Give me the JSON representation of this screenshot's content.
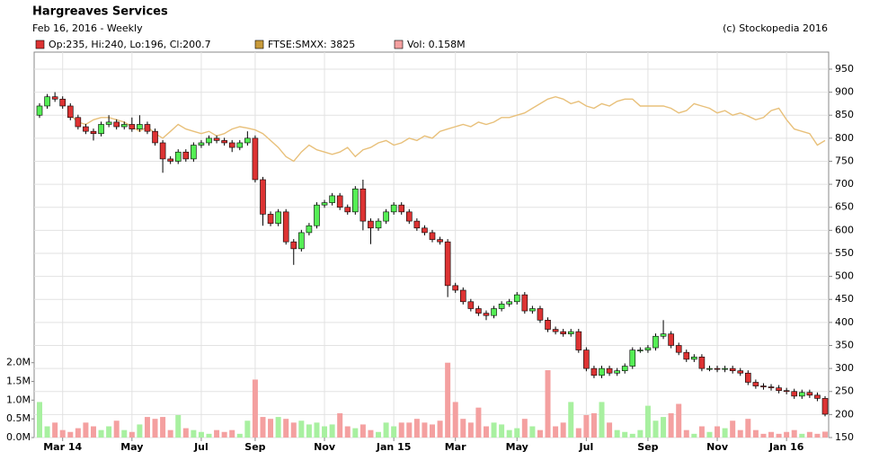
{
  "chart_data": {
    "type": "candlestick",
    "title": "Hargreaves Services",
    "subtitle": "Feb 16, 2016 - Weekly",
    "credit": "(c) Stockopedia 2016",
    "categories": [
      null,
      null,
      null,
      "Mar 14",
      null,
      null,
      null,
      null,
      null,
      null,
      null,
      null,
      "May",
      null,
      null,
      null,
      null,
      null,
      null,
      null,
      null,
      "Jul",
      null,
      null,
      null,
      null,
      null,
      null,
      "Sep",
      null,
      null,
      null,
      null,
      null,
      null,
      null,
      null,
      "Nov",
      null,
      null,
      null,
      null,
      null,
      null,
      null,
      null,
      "Jan 15",
      null,
      null,
      null,
      null,
      null,
      null,
      null,
      "Mar",
      null,
      null,
      null,
      null,
      null,
      null,
      null,
      "May",
      null,
      null,
      null,
      null,
      null,
      null,
      null,
      null,
      "Jul",
      null,
      null,
      null,
      null,
      null,
      null,
      null,
      "Sep",
      null,
      null,
      null,
      null,
      null,
      null,
      null,
      null,
      "Nov",
      null,
      null,
      null,
      null,
      null,
      null,
      null,
      null,
      "Jan 16",
      null,
      null,
      null,
      null,
      null
    ],
    "series": [
      {
        "name": "Op:235, Hi:240, Lo:196, Cl:200.7",
        "color": "#dd3333",
        "up_color": "#55ee55",
        "open": [
          850,
          870,
          890,
          885,
          870,
          845,
          825,
          815,
          810,
          830,
          835,
          825,
          830,
          820,
          830,
          815,
          790,
          755,
          750,
          770,
          755,
          785,
          790,
          800,
          795,
          790,
          780,
          790,
          800,
          710,
          635,
          615,
          640,
          575,
          560,
          595,
          610,
          655,
          660,
          675,
          650,
          640,
          690,
          620,
          605,
          620,
          640,
          655,
          640,
          620,
          605,
          595,
          580,
          575,
          480,
          470,
          445,
          430,
          420,
          415,
          430,
          440,
          445,
          460,
          425,
          430,
          405,
          385,
          380,
          375,
          380,
          340,
          300,
          285,
          300,
          290,
          295,
          305,
          340,
          340,
          345,
          370,
          375,
          350,
          335,
          320,
          325,
          300,
          300,
          298,
          300,
          295,
          290,
          270,
          262,
          260,
          258,
          252,
          250,
          240,
          248,
          242,
          235
        ],
        "high": [
          876,
          896,
          900,
          891,
          876,
          851,
          831,
          821,
          836,
          850,
          841,
          836,
          845,
          850,
          836,
          821,
          796,
          761,
          776,
          776,
          791,
          796,
          806,
          806,
          801,
          796,
          796,
          815,
          806,
          716,
          641,
          646,
          646,
          581,
          601,
          616,
          661,
          666,
          681,
          681,
          656,
          696,
          710,
          626,
          626,
          646,
          661,
          661,
          646,
          626,
          611,
          601,
          586,
          581,
          486,
          476,
          451,
          436,
          426,
          436,
          446,
          451,
          466,
          466,
          436,
          436,
          411,
          391,
          386,
          386,
          386,
          346,
          306,
          306,
          306,
          301,
          311,
          346,
          346,
          351,
          376,
          405,
          381,
          356,
          341,
          331,
          331,
          306,
          306,
          306,
          306,
          301,
          296,
          276,
          268,
          266,
          264,
          258,
          256,
          254,
          254,
          248,
          240
        ],
        "low": [
          844,
          864,
          879,
          864,
          839,
          819,
          809,
          795,
          804,
          824,
          819,
          819,
          814,
          814,
          809,
          784,
          725,
          744,
          744,
          749,
          749,
          779,
          784,
          789,
          784,
          770,
          774,
          784,
          704,
          610,
          609,
          609,
          569,
          525,
          554,
          589,
          604,
          649,
          654,
          644,
          634,
          634,
          600,
          570,
          599,
          614,
          634,
          634,
          614,
          599,
          589,
          574,
          569,
          455,
          464,
          439,
          424,
          414,
          405,
          409,
          424,
          434,
          439,
          419,
          419,
          399,
          379,
          374,
          369,
          369,
          334,
          294,
          279,
          279,
          284,
          284,
          289,
          299,
          334,
          334,
          339,
          364,
          344,
          329,
          314,
          314,
          294,
          294,
          292,
          292,
          289,
          284,
          264,
          256,
          254,
          252,
          246,
          244,
          234,
          234,
          236,
          229,
          196
        ],
        "close": [
          870,
          890,
          885,
          870,
          845,
          825,
          815,
          810,
          830,
          835,
          825,
          830,
          820,
          830,
          815,
          790,
          755,
          750,
          770,
          755,
          785,
          790,
          800,
          795,
          790,
          780,
          790,
          800,
          710,
          635,
          615,
          640,
          575,
          560,
          595,
          610,
          655,
          660,
          675,
          650,
          640,
          690,
          620,
          605,
          620,
          640,
          655,
          640,
          620,
          605,
          595,
          580,
          575,
          480,
          470,
          445,
          430,
          420,
          415,
          430,
          440,
          445,
          460,
          425,
          430,
          405,
          385,
          380,
          375,
          380,
          340,
          300,
          285,
          300,
          290,
          295,
          305,
          340,
          340,
          345,
          370,
          375,
          350,
          335,
          320,
          325,
          300,
          300,
          298,
          300,
          295,
          290,
          270,
          262,
          260,
          258,
          252,
          250,
          240,
          248,
          242,
          235,
          200.7
        ]
      }
    ],
    "overlay": {
      "name": "FTSE:SMXX: 3825",
      "color": "#e8c07a",
      "legend_color": "#c89a3a",
      "values": [
        null,
        null,
        null,
        null,
        850,
        835,
        830,
        840,
        845,
        845,
        840,
        835,
        825,
        815,
        825,
        810,
        800,
        815,
        830,
        820,
        815,
        810,
        815,
        805,
        810,
        820,
        825,
        822,
        818,
        810,
        795,
        780,
        760,
        750,
        770,
        785,
        775,
        770,
        765,
        770,
        780,
        760,
        775,
        780,
        790,
        795,
        785,
        790,
        800,
        795,
        805,
        800,
        815,
        820,
        825,
        830,
        825,
        835,
        830,
        835,
        845,
        845,
        850,
        855,
        865,
        875,
        885,
        890,
        885,
        875,
        880,
        870,
        865,
        875,
        870,
        880,
        885,
        885,
        870,
        870,
        870,
        870,
        865,
        855,
        860,
        875,
        870,
        865,
        855,
        860,
        850,
        855,
        848,
        840,
        845,
        860,
        865,
        840,
        820,
        815,
        810,
        785,
        795
      ]
    },
    "volume": {
      "name": "Vol: 0.158M",
      "color": "#f4a0a0",
      "up_color": "#a8f0a0",
      "values": [
        0.95,
        0.3,
        0.4,
        0.2,
        0.15,
        0.25,
        0.4,
        0.3,
        0.2,
        0.3,
        0.45,
        0.2,
        0.15,
        0.35,
        0.55,
        0.5,
        0.55,
        0.2,
        0.6,
        0.25,
        0.2,
        0.15,
        0.1,
        0.2,
        0.15,
        0.2,
        0.1,
        0.45,
        1.55,
        0.55,
        0.5,
        0.55,
        0.5,
        0.4,
        0.45,
        0.35,
        0.4,
        0.3,
        0.35,
        0.65,
        0.3,
        0.25,
        0.35,
        0.2,
        0.15,
        0.4,
        0.3,
        0.4,
        0.4,
        0.5,
        0.4,
        0.35,
        0.45,
        2.0,
        0.95,
        0.5,
        0.4,
        0.8,
        0.3,
        0.4,
        0.35,
        0.2,
        0.25,
        0.5,
        0.3,
        0.2,
        1.8,
        0.3,
        0.4,
        0.95,
        0.25,
        0.6,
        0.65,
        0.95,
        0.4,
        0.2,
        0.15,
        0.1,
        0.2,
        0.85,
        0.45,
        0.55,
        0.65,
        0.9,
        0.2,
        0.1,
        0.3,
        0.15,
        0.3,
        0.25,
        0.45,
        0.2,
        0.5,
        0.2,
        0.1,
        0.15,
        0.1,
        0.15,
        0.2,
        0.1,
        0.15,
        0.1,
        0.158
      ],
      "ylim": [
        0,
        10.3
      ],
      "yticks": [
        {
          "value": 0,
          "label": "0.0M"
        },
        {
          "value": 0.5,
          "label": "0.5M"
        },
        {
          "value": 1,
          "label": "1.0M"
        },
        {
          "value": 1.5,
          "label": "1.5M"
        },
        {
          "value": 2,
          "label": "2.0M"
        }
      ]
    },
    "ylim": [
      150,
      987
    ],
    "yticks": [
      150,
      200,
      250,
      300,
      350,
      400,
      450,
      500,
      550,
      600,
      650,
      700,
      750,
      800,
      850,
      900,
      950
    ],
    "grid": true
  }
}
